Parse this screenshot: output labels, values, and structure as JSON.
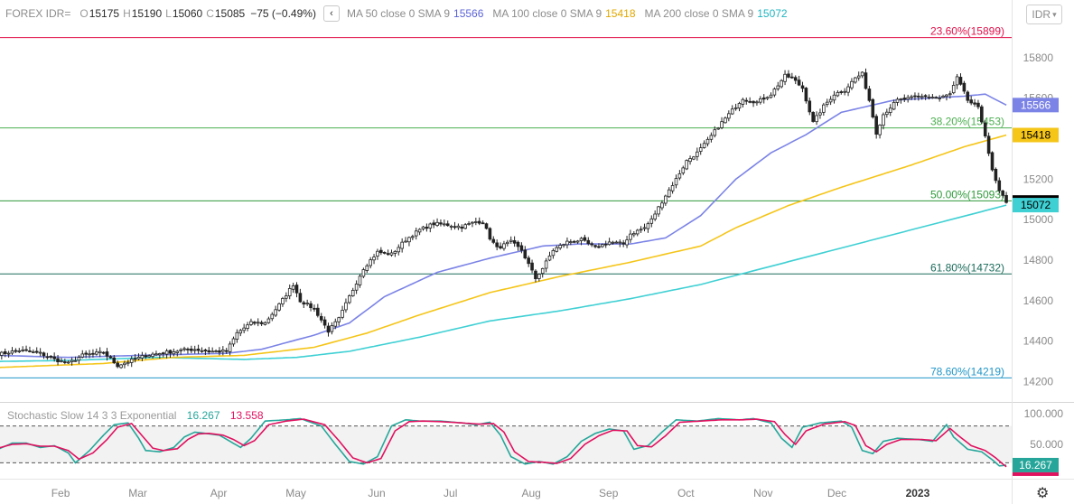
{
  "header": {
    "symbol": "FOREX IDR=",
    "open_label": "O",
    "open": "15175",
    "high_label": "H",
    "high": "15190",
    "low_label": "L",
    "low": "15060",
    "close_label": "C",
    "close": "15085",
    "change": "−75 (−0.49%)",
    "collapse_icon": "chevron-left-icon",
    "ma50_label": "MA 50 close 0 SMA 9",
    "ma50_value": "15566",
    "ma100_label": "MA 100 close 0 SMA 9",
    "ma100_value": "15418",
    "ma200_label": "MA 200 close 0 SMA 9",
    "ma200_value": "15072",
    "currency": "IDR",
    "currency_icon": "chevron-down-icon"
  },
  "colors": {
    "up": "#222222",
    "down": "#222222",
    "ma50": "#7b83e6",
    "ma100": "#f5c518",
    "ma200": "#3fd0d4",
    "fib_2360": "#e0114a",
    "fib_3820": "#4caf50",
    "fib_5000": "#2e9a3a",
    "fib_6180": "#1b6b5a",
    "fib_7860": "#2196c8",
    "stoch_k": "#26a69a",
    "stoch_d": "#e0115f",
    "last_price_bg": "#000000"
  },
  "stochastic": {
    "label": "Stochastic Slow 14 3 3 Exponential",
    "k_value": "16.267",
    "d_value": "13.558",
    "axis_ticks": [
      "100.000",
      "50.000"
    ],
    "upper_band": 80,
    "lower_band": 20,
    "k_badge": "16.267"
  },
  "footer": {
    "settings_icon": "gear-icon"
  },
  "chart_data": {
    "type": "candlestick",
    "title": "FOREX IDR=",
    "y_ticks": [
      15800,
      15600,
      15400,
      15200,
      15000,
      14800,
      14600,
      14400,
      14200
    ],
    "y_tick_labels": [
      "15800",
      "15600",
      "15400",
      "15200",
      "15000",
      "14800",
      "14600",
      "14400",
      "14200"
    ],
    "ylim": [
      14100,
      15960
    ],
    "x_tick_labels": [
      "Feb",
      "Mar",
      "Apr",
      "May",
      "Jun",
      "Jul",
      "Aug",
      "Sep",
      "Oct",
      "Nov",
      "Dec",
      "2023"
    ],
    "fib_levels": [
      {
        "label": "23.60%(15899)",
        "value": 15899,
        "color_key": "fib_2360"
      },
      {
        "label": "38.20%(15453)",
        "value": 15453,
        "color_key": "fib_3820"
      },
      {
        "label": "50.00%(15093)",
        "value": 15093,
        "color_key": "fib_5000"
      },
      {
        "label": "61.80%(14732)",
        "value": 14732,
        "color_key": "fib_6180"
      },
      {
        "label": "78.60%(14219)",
        "value": 14219,
        "color_key": "fib_7860"
      }
    ],
    "price_badges": [
      {
        "text": "15566",
        "value": 15566,
        "bg": "#7b83e6",
        "fg": "#ffffff"
      },
      {
        "text": "15418",
        "value": 15418,
        "bg": "#f5c518",
        "fg": "#000000"
      },
      {
        "text": "15085",
        "value": 15085,
        "bg": "#000000",
        "fg": "#ffffff"
      },
      {
        "text": "15072",
        "value": 15072,
        "bg": "#3fd0d4",
        "fg": "#000000"
      }
    ],
    "close_anchors": [
      [
        0,
        14335
      ],
      [
        6,
        14355
      ],
      [
        12,
        14340
      ],
      [
        16,
        14310
      ],
      [
        20,
        14290
      ],
      [
        24,
        14330
      ],
      [
        30,
        14345
      ],
      [
        34,
        14280
      ],
      [
        38,
        14305
      ],
      [
        42,
        14330
      ],
      [
        48,
        14345
      ],
      [
        52,
        14355
      ],
      [
        56,
        14360
      ],
      [
        60,
        14350
      ],
      [
        65,
        14350
      ],
      [
        68,
        14440
      ],
      [
        72,
        14490
      ],
      [
        76,
        14490
      ],
      [
        80,
        14580
      ],
      [
        84,
        14680
      ],
      [
        86,
        14600
      ],
      [
        90,
        14560
      ],
      [
        94,
        14450
      ],
      [
        97,
        14510
      ],
      [
        100,
        14620
      ],
      [
        104,
        14760
      ],
      [
        108,
        14840
      ],
      [
        112,
        14830
      ],
      [
        116,
        14900
      ],
      [
        120,
        14950
      ],
      [
        124,
        14980
      ],
      [
        128,
        14975
      ],
      [
        132,
        14965
      ],
      [
        136,
        14990
      ],
      [
        138,
        14990
      ],
      [
        140,
        14910
      ],
      [
        142,
        14860
      ],
      [
        146,
        14890
      ],
      [
        149,
        14850
      ],
      [
        151,
        14780
      ],
      [
        153,
        14710
      ],
      [
        155,
        14760
      ],
      [
        158,
        14850
      ],
      [
        162,
        14890
      ],
      [
        166,
        14900
      ],
      [
        170,
        14860
      ],
      [
        174,
        14890
      ],
      [
        178,
        14880
      ],
      [
        180,
        14930
      ],
      [
        184,
        14960
      ],
      [
        186,
        15000
      ],
      [
        190,
        15120
      ],
      [
        193,
        15200
      ],
      [
        196,
        15290
      ],
      [
        199,
        15330
      ],
      [
        202,
        15390
      ],
      [
        205,
        15460
      ],
      [
        209,
        15540
      ],
      [
        212,
        15600
      ],
      [
        216,
        15580
      ],
      [
        220,
        15620
      ],
      [
        224,
        15710
      ],
      [
        226,
        15700
      ],
      [
        229,
        15650
      ],
      [
        232,
        15480
      ],
      [
        235,
        15560
      ],
      [
        238,
        15620
      ],
      [
        241,
        15640
      ],
      [
        244,
        15700
      ],
      [
        246,
        15720
      ],
      [
        248,
        15590
      ],
      [
        250,
        15430
      ],
      [
        252,
        15520
      ],
      [
        256,
        15590
      ],
      [
        260,
        15600
      ],
      [
        264,
        15610
      ],
      [
        268,
        15600
      ],
      [
        271,
        15620
      ],
      [
        273,
        15700
      ],
      [
        276,
        15590
      ],
      [
        279,
        15550
      ],
      [
        281,
        15420
      ],
      [
        283,
        15240
      ],
      [
        285,
        15140
      ],
      [
        287,
        15085
      ]
    ],
    "n_bars": 288,
    "ma50_anchors": [
      [
        0,
        14330
      ],
      [
        20,
        14320
      ],
      [
        40,
        14330
      ],
      [
        65,
        14340
      ],
      [
        75,
        14360
      ],
      [
        90,
        14430
      ],
      [
        100,
        14490
      ],
      [
        110,
        14620
      ],
      [
        125,
        14740
      ],
      [
        140,
        14810
      ],
      [
        155,
        14870
      ],
      [
        165,
        14880
      ],
      [
        180,
        14880
      ],
      [
        190,
        14910
      ],
      [
        200,
        15020
      ],
      [
        210,
        15200
      ],
      [
        220,
        15330
      ],
      [
        230,
        15420
      ],
      [
        240,
        15530
      ],
      [
        255,
        15590
      ],
      [
        265,
        15600
      ],
      [
        275,
        15610
      ],
      [
        281,
        15620
      ],
      [
        287,
        15566
      ]
    ],
    "ma100_anchors": [
      [
        0,
        14270
      ],
      [
        30,
        14290
      ],
      [
        50,
        14320
      ],
      [
        70,
        14330
      ],
      [
        90,
        14370
      ],
      [
        105,
        14440
      ],
      [
        120,
        14530
      ],
      [
        140,
        14640
      ],
      [
        160,
        14720
      ],
      [
        180,
        14790
      ],
      [
        200,
        14870
      ],
      [
        210,
        14960
      ],
      [
        225,
        15070
      ],
      [
        240,
        15160
      ],
      [
        260,
        15270
      ],
      [
        275,
        15360
      ],
      [
        287,
        15418
      ]
    ],
    "ma200_anchors": [
      [
        0,
        14300
      ],
      [
        20,
        14305
      ],
      [
        45,
        14320
      ],
      [
        70,
        14310
      ],
      [
        85,
        14320
      ],
      [
        100,
        14350
      ],
      [
        120,
        14420
      ],
      [
        140,
        14500
      ],
      [
        160,
        14550
      ],
      [
        180,
        14610
      ],
      [
        200,
        14680
      ],
      [
        220,
        14770
      ],
      [
        240,
        14860
      ],
      [
        260,
        14950
      ],
      [
        280,
        15040
      ],
      [
        287,
        15072
      ]
    ],
    "stoch_k_anchors": [
      [
        0,
        42
      ],
      [
        4,
        52
      ],
      [
        8,
        52
      ],
      [
        12,
        45
      ],
      [
        16,
        48
      ],
      [
        20,
        36
      ],
      [
        22,
        20
      ],
      [
        26,
        40
      ],
      [
        30,
        65
      ],
      [
        33,
        82
      ],
      [
        37,
        85
      ],
      [
        40,
        60
      ],
      [
        42,
        40
      ],
      [
        46,
        38
      ],
      [
        50,
        45
      ],
      [
        53,
        62
      ],
      [
        56,
        70
      ],
      [
        59,
        68
      ],
      [
        63,
        65
      ],
      [
        66,
        55
      ],
      [
        69,
        45
      ],
      [
        72,
        60
      ],
      [
        76,
        88
      ],
      [
        82,
        90
      ],
      [
        86,
        92
      ],
      [
        92,
        80
      ],
      [
        96,
        50
      ],
      [
        100,
        22
      ],
      [
        104,
        18
      ],
      [
        108,
        30
      ],
      [
        112,
        80
      ],
      [
        116,
        90
      ],
      [
        120,
        88
      ],
      [
        126,
        88
      ],
      [
        132,
        85
      ],
      [
        136,
        82
      ],
      [
        140,
        86
      ],
      [
        143,
        65
      ],
      [
        146,
        30
      ],
      [
        150,
        18
      ],
      [
        154,
        22
      ],
      [
        158,
        18
      ],
      [
        162,
        30
      ],
      [
        166,
        55
      ],
      [
        170,
        68
      ],
      [
        174,
        75
      ],
      [
        178,
        72
      ],
      [
        181,
        42
      ],
      [
        185,
        48
      ],
      [
        189,
        70
      ],
      [
        193,
        90
      ],
      [
        199,
        88
      ],
      [
        205,
        92
      ],
      [
        211,
        90
      ],
      [
        215,
        92
      ],
      [
        220,
        85
      ],
      [
        223,
        60
      ],
      [
        226,
        45
      ],
      [
        229,
        78
      ],
      [
        234,
        85
      ],
      [
        240,
        88
      ],
      [
        243,
        78
      ],
      [
        246,
        40
      ],
      [
        249,
        35
      ],
      [
        252,
        55
      ],
      [
        256,
        60
      ],
      [
        262,
        58
      ],
      [
        266,
        55
      ],
      [
        270,
        82
      ],
      [
        272,
        62
      ],
      [
        276,
        42
      ],
      [
        280,
        38
      ],
      [
        283,
        25
      ],
      [
        285,
        15
      ],
      [
        287,
        16.3
      ]
    ],
    "stoch_d_anchors": [
      [
        0,
        44
      ],
      [
        4,
        50
      ],
      [
        8,
        51
      ],
      [
        12,
        47
      ],
      [
        16,
        47
      ],
      [
        20,
        40
      ],
      [
        23,
        26
      ],
      [
        27,
        36
      ],
      [
        31,
        58
      ],
      [
        34,
        78
      ],
      [
        38,
        84
      ],
      [
        41,
        64
      ],
      [
        44,
        44
      ],
      [
        47,
        40
      ],
      [
        51,
        43
      ],
      [
        54,
        58
      ],
      [
        57,
        67
      ],
      [
        60,
        68
      ],
      [
        64,
        65
      ],
      [
        67,
        58
      ],
      [
        70,
        48
      ],
      [
        73,
        56
      ],
      [
        77,
        82
      ],
      [
        82,
        88
      ],
      [
        87,
        91
      ],
      [
        93,
        82
      ],
      [
        97,
        56
      ],
      [
        101,
        28
      ],
      [
        105,
        20
      ],
      [
        109,
        27
      ],
      [
        113,
        72
      ],
      [
        117,
        87
      ],
      [
        121,
        88
      ],
      [
        126,
        87
      ],
      [
        132,
        85
      ],
      [
        137,
        83
      ],
      [
        141,
        84
      ],
      [
        144,
        70
      ],
      [
        147,
        38
      ],
      [
        151,
        22
      ],
      [
        155,
        21
      ],
      [
        159,
        19
      ],
      [
        163,
        27
      ],
      [
        167,
        50
      ],
      [
        171,
        64
      ],
      [
        175,
        73
      ],
      [
        179,
        72
      ],
      [
        182,
        48
      ],
      [
        186,
        46
      ],
      [
        190,
        64
      ],
      [
        194,
        86
      ],
      [
        200,
        88
      ],
      [
        206,
        90
      ],
      [
        212,
        90
      ],
      [
        216,
        91
      ],
      [
        221,
        87
      ],
      [
        224,
        66
      ],
      [
        227,
        50
      ],
      [
        230,
        72
      ],
      [
        235,
        83
      ],
      [
        241,
        87
      ],
      [
        244,
        81
      ],
      [
        247,
        48
      ],
      [
        250,
        38
      ],
      [
        253,
        50
      ],
      [
        257,
        58
      ],
      [
        263,
        58
      ],
      [
        267,
        56
      ],
      [
        271,
        76
      ],
      [
        273,
        66
      ],
      [
        277,
        48
      ],
      [
        281,
        40
      ],
      [
        284,
        28
      ],
      [
        286,
        18
      ],
      [
        287,
        13.6
      ]
    ]
  }
}
